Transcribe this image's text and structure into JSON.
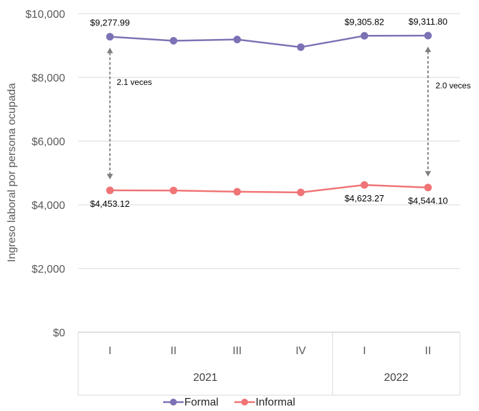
{
  "chart_data": {
    "type": "line",
    "ylabel": "Ingreso laboral por persona ocupada",
    "ylim": [
      0,
      10000
    ],
    "y_ticks": [
      "$0",
      "$2,000",
      "$4,000",
      "$6,000",
      "$8,000",
      "$10,000"
    ],
    "y_tick_values": [
      0,
      2000,
      4000,
      6000,
      8000,
      10000
    ],
    "categories": [
      "I",
      "II",
      "III",
      "IV",
      "I",
      "II"
    ],
    "groups": [
      {
        "label": "2021",
        "count": 4
      },
      {
        "label": "2022",
        "count": 2
      }
    ],
    "series": [
      {
        "name": "Formal",
        "color": "#7b72b5",
        "values": [
          9277.99,
          9150,
          9190,
          8950,
          9305.82,
          9311.8
        ]
      },
      {
        "name": "Informal",
        "color": "#f07375",
        "values": [
          4453.12,
          4450,
          4410,
          4390,
          4623.27,
          4544.1
        ]
      }
    ],
    "data_labels": [
      {
        "series": 0,
        "index": 0,
        "text": "$9,277.99"
      },
      {
        "series": 0,
        "index": 4,
        "text": "$9,305.82"
      },
      {
        "series": 0,
        "index": 5,
        "text": "$9,311.80"
      },
      {
        "series": 1,
        "index": 0,
        "text": "$4,453.12"
      },
      {
        "series": 1,
        "index": 4,
        "text": "$4,623.27"
      },
      {
        "series": 1,
        "index": 5,
        "text": "$4,544.10"
      }
    ],
    "ratio_annotations": [
      {
        "index": 0,
        "text": "2.1 veces"
      },
      {
        "index": 5,
        "text": "2.0 veces"
      }
    ],
    "legend": {
      "position": "bottom",
      "entries": [
        "Formal",
        "Informal"
      ]
    },
    "grid": true,
    "grid_color": "#d9d9d9"
  }
}
